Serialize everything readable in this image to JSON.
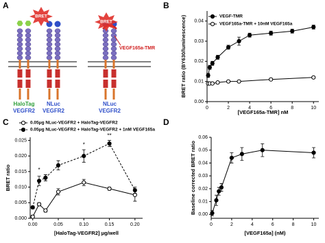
{
  "diagram": {
    "label": "A",
    "bret_labels": [
      "BRET",
      "BRET"
    ],
    "ligand": "VEGF165a-TMR",
    "receptors": [
      {
        "tag": "HaloTag",
        "name": "VEGFR2"
      },
      {
        "tag": "NLuc",
        "name": "VEGFR2"
      },
      {
        "tag": "NLuc",
        "name": "VEGFR2"
      }
    ]
  },
  "chart_data": [
    {
      "type": "scatter",
      "panel": "B",
      "xlabel": "[VEGF165a-TMR] nM",
      "ylabel": "BRET ratio (BY630/luminescence)",
      "xlim": [
        0,
        10.5
      ],
      "ylim": [
        0,
        0.045
      ],
      "xticks": [
        0,
        2,
        4,
        6,
        8,
        10
      ],
      "yticks": [
        {
          "value": 0,
          "label": "0.00"
        },
        {
          "value": 0.01,
          "label": "0.01"
        },
        {
          "value": 0.02,
          "label": "0.02"
        },
        {
          "value": 0.03,
          "label": "0.03"
        },
        {
          "value": 0.04,
          "label": "0.04"
        }
      ],
      "legend": "upper left",
      "series": [
        {
          "name": "VEGF-TMR",
          "color": "#000000",
          "filled": true,
          "line": "solid",
          "x": [
            0.1,
            0.25,
            0.5,
            1,
            2,
            3,
            4,
            6,
            8,
            10
          ],
          "values": [
            0.013,
            0.017,
            0.019,
            0.022,
            0.027,
            0.03,
            0.033,
            0.034,
            0.035,
            0.037
          ],
          "errors": [
            0.001,
            0.001,
            0.001,
            0.001,
            0.001,
            0.002,
            0.001,
            0.001,
            0.001,
            0.001
          ]
        },
        {
          "name": "VEGF165a-TMR + 10nM VEGF165a",
          "color": "#000000",
          "filled": false,
          "line": "solid",
          "x": [
            0.1,
            0.25,
            0.5,
            1,
            2,
            3,
            6,
            10
          ],
          "values": [
            0.009,
            0.009,
            0.009,
            0.0095,
            0.01,
            0.01,
            0.011,
            0.012
          ],
          "errors": [
            0.0005,
            0.0005,
            0.0005,
            0.0005,
            0.0005,
            0.0005,
            0.0005,
            0.0005
          ]
        }
      ]
    },
    {
      "type": "scatter",
      "panel": "C",
      "xlabel": "[HaloTag-VEGFR2] μg/well",
      "ylabel": "BRET ratio",
      "xlim": [
        -0.005,
        0.215
      ],
      "ylim": [
        0,
        0.026
      ],
      "xticks": [
        {
          "value": 0,
          "label": "0.00"
        },
        {
          "value": 0.05,
          "label": "0.05"
        },
        {
          "value": 0.1,
          "label": "0.10"
        },
        {
          "value": 0.15,
          "label": "0.15"
        },
        {
          "value": 0.2,
          "label": "0.20"
        }
      ],
      "yticks": [
        {
          "value": 0,
          "label": "0.000"
        },
        {
          "value": 0.005,
          "label": "0.005"
        },
        {
          "value": 0.01,
          "label": "0.010"
        },
        {
          "value": 0.015,
          "label": "0.015"
        },
        {
          "value": 0.02,
          "label": "0.020"
        },
        {
          "value": 0.025,
          "label": "0.025"
        }
      ],
      "legend": "above",
      "series": [
        {
          "name": "0.05μg NLuc-VEGFR2 + HaloTag-VEGFR2",
          "color": "#000000",
          "filled": false,
          "line": "solid",
          "x": [
            0,
            0.0125,
            0.025,
            0.05,
            0.1,
            0.15,
            0.2
          ],
          "values": [
            0.0005,
            0.0045,
            0.0025,
            0.0085,
            0.0115,
            0.0095,
            0.0075
          ],
          "errors": [
            0.0005,
            0.0005,
            0.0005,
            0.001,
            0.001,
            0.0005,
            0.002
          ]
        },
        {
          "name": "0.05μg NLuc-VEGFR2 + HaloTag-VEGFR2 + 1nM VEGF165a",
          "color": "#000000",
          "filled": true,
          "line": "dashed",
          "x": [
            0,
            0.0125,
            0.025,
            0.05,
            0.1,
            0.15,
            0.2
          ],
          "values": [
            0.0035,
            0.012,
            0.013,
            0.017,
            0.02,
            0.024,
            0.009
          ],
          "errors": [
            0.0005,
            0.0015,
            0.001,
            0.0015,
            0.002,
            0.001,
            0.001
          ]
        }
      ],
      "annotations": [
        {
          "text": "*",
          "x": 0.0125,
          "y": 0.0155
        },
        {
          "text": "*",
          "x": 0.1,
          "y": 0.0235
        },
        {
          "text": "**",
          "x": 0.15,
          "y": 0.0265
        }
      ]
    },
    {
      "type": "scatter",
      "panel": "D",
      "xlabel": "[VEGF165a] (nM)",
      "ylabel": "Baseline corrected BRET ratio",
      "xlim": [
        0,
        10.5
      ],
      "ylim": [
        -0.003,
        0.06
      ],
      "xticks": [
        0,
        2,
        4,
        6,
        8,
        10
      ],
      "yticks": [
        {
          "value": 0,
          "label": "0.00"
        },
        {
          "value": 0.01,
          "label": "0.01"
        },
        {
          "value": 0.02,
          "label": "0.02"
        },
        {
          "value": 0.03,
          "label": "0.03"
        },
        {
          "value": 0.04,
          "label": "0.04"
        },
        {
          "value": 0.05,
          "label": "0.05"
        },
        {
          "value": 0.06,
          "label": "0.06"
        }
      ],
      "series": [
        {
          "color": "#000000",
          "filled": true,
          "line": "solid",
          "x": [
            0.1,
            0.5,
            0.75,
            1,
            2,
            3,
            5,
            10
          ],
          "values": [
            0.001,
            0.011,
            0.018,
            0.021,
            0.044,
            0.047,
            0.05,
            0.048
          ],
          "errors": [
            0.002,
            0.004,
            0.003,
            0.003,
            0.004,
            0.005,
            0.005,
            0.004
          ]
        }
      ]
    }
  ]
}
